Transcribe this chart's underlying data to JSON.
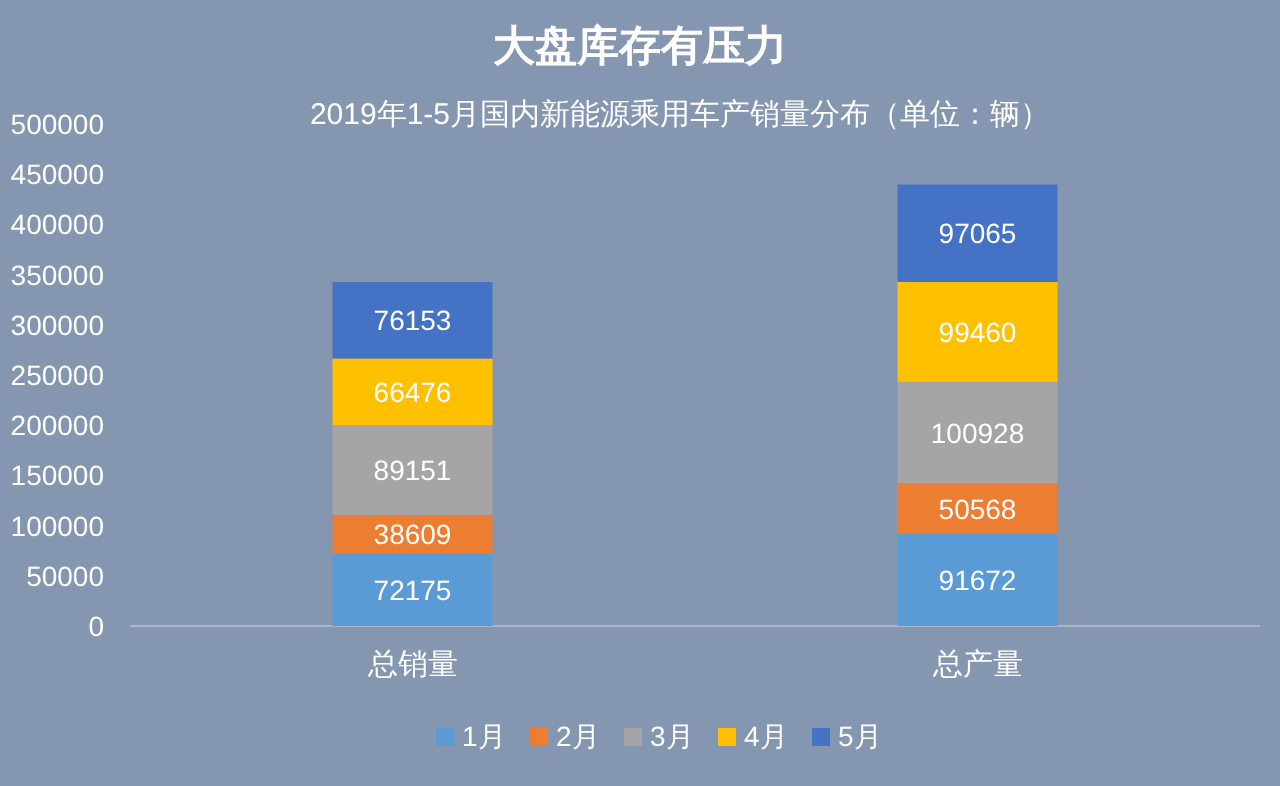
{
  "chart_data": {
    "type": "bar",
    "title": "大盘库存有压力",
    "subtitle": "2019年1-5月国内新能源乘用车产销量分布（单位：辆）",
    "categories": [
      "总销量",
      "总产量"
    ],
    "stacked": true,
    "data_labels": true,
    "legend": "bottom",
    "grid": false,
    "ylim": [
      0,
      500000
    ],
    "yticks": [
      0,
      50000,
      100000,
      150000,
      200000,
      250000,
      300000,
      350000,
      400000,
      450000,
      500000
    ],
    "series": [
      {
        "name": "1月",
        "color": "#5b9bd5",
        "values": [
          72175,
          91672
        ]
      },
      {
        "name": "2月",
        "color": "#ed7d31",
        "values": [
          38609,
          50568
        ]
      },
      {
        "name": "3月",
        "color": "#a5a5a5",
        "values": [
          89151,
          100928
        ]
      },
      {
        "name": "4月",
        "color": "#ffc000",
        "values": [
          66476,
          99460
        ]
      },
      {
        "name": "5月",
        "color": "#4472c4",
        "values": [
          76153,
          97065
        ]
      }
    ]
  }
}
